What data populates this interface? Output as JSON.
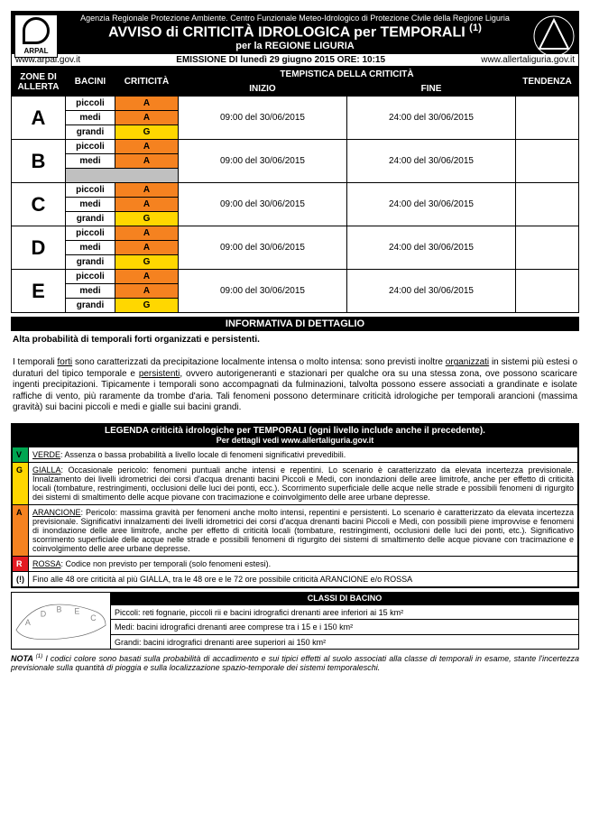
{
  "header": {
    "agency": "Agenzia Regionale Protezione Ambiente. Centro Funzionale Meteo-Idrologico di Protezione Civile della Regione Liguria",
    "title_pre": "AVVISO di CRITICITÀ IDROLOGICA per TEMPORALI",
    "title_sup": "(1)",
    "subtitle": "per la REGIONE LIGURIA",
    "logo_left_label": "ARPAL"
  },
  "urls": {
    "left": "www.arpal.gov.it",
    "center": "EMISSIONE DI lunedì 29 giugno 2015 ORE: 10:15",
    "right": "www.allertaliguria.gov.it"
  },
  "columns": {
    "zone": "ZONE DI ALLERTA",
    "bacini": "BACINI",
    "crit": "CRITICITÀ",
    "temp_group": "TEMPISTICA DELLA CRITICITÀ",
    "inizio": "INIZIO",
    "fine": "FINE",
    "tendenza": "TENDENZA"
  },
  "bacini_labels": {
    "piccoli": "piccoli",
    "medi": "medi",
    "grandi": "grandi"
  },
  "timing": {
    "inizio": "09:00 del 30/06/2015",
    "fine": "24:00 del 30/06/2015"
  },
  "zones": {
    "A": {
      "piccoli": "A",
      "medi": "A",
      "grandi": "G"
    },
    "B": {
      "piccoli": "A",
      "medi": "A"
    },
    "C": {
      "piccoli": "A",
      "medi": "A",
      "grandi": "G"
    },
    "D": {
      "piccoli": "A",
      "medi": "A",
      "grandi": "G"
    },
    "E": {
      "piccoli": "A",
      "medi": "A",
      "grandi": "G"
    }
  },
  "info": {
    "heading": "INFORMATIVA DI DETTAGLIO",
    "lead": "Alta probabilità di temporali forti organizzati e persistenti.",
    "body_pre": "I temporali ",
    "body_u1": "forti",
    "body_mid1": " sono caratterizzati da precipitazione localmente intensa o molto intensa: sono previsti inoltre ",
    "body_u2": "organizzati",
    "body_mid2": " in sistemi più estesi o duraturi del tipico temporale e ",
    "body_u3": "persistenti",
    "body_tail": ", ovvero autorigeneranti e stazionari per qualche ora su una stessa zona, ove possono scaricare ingenti precipitazioni. Tipicamente i temporali sono accompagnati da fulminazioni, talvolta possono essere associati a grandinate e isolate raffiche di vento, più raramente da trombe d'aria. Tali fenomeni possono determinare criticità idrologiche per temporali arancioni (massima gravità) sui bacini piccoli e medi e gialle sui bacini grandi."
  },
  "legend": {
    "heading": "LEGENDA criticità idrologiche per TEMPORALI (ogni livello include anche il precedente).",
    "sub": "Per dettagli vedi www.allertaliguria.gov.it",
    "rows": [
      {
        "code": "V",
        "class": "lv-V",
        "label": "VERDE",
        "text": ": Assenza o bassa probabilità a livello locale di fenomeni significativi prevedibili."
      },
      {
        "code": "G",
        "class": "lv-G",
        "label": "GIALLA",
        "text": ": Occasionale pericolo: fenomeni puntuali anche intensi e repentini. Lo scenario è caratterizzato da elevata incertezza previsionale. Innalzamento dei livelli idrometrici dei corsi d'acqua drenanti bacini Piccoli e Medi, con inondazioni delle aree limitrofe, anche per effetto di criticità locali (tombature, restringimenti, occlusioni delle luci dei ponti, ecc.). Scorrimento superficiale delle acque nelle strade e possibili fenomeni di rigurgito dei sistemi di smaltimento delle acque piovane con tracimazione e coinvolgimento delle aree urbane depresse."
      },
      {
        "code": "A",
        "class": "lv-A",
        "label": "ARANCIONE",
        "text": ": Pericolo: massima gravità per fenomeni anche molto intensi, repentini e persistenti. Lo scenario è caratterizzato da elevata incertezza previsionale. Significativi innalzamenti dei livelli idrometrici dei corsi d'acqua drenanti bacini Piccoli e Medi, con possibili piene improvvise e fenomeni di inondazione delle aree limitrofe, anche per effetto di criticità locali (tombature, restringimenti, occlusioni delle luci dei ponti, etc.). Significativo scorrimento superficiale delle acque nelle strade e possibili fenomeni di rigurgito dei sistemi di smaltimento delle acque piovane con tracimazione e coinvolgimento delle aree urbane depresse."
      },
      {
        "code": "R",
        "class": "lv-R",
        "label": "ROSSA",
        "text": ": Codice non previsto per temporali (solo fenomeni estesi)."
      },
      {
        "code": "(!)",
        "class": "lv-ex",
        "label": "",
        "text": "Fino alle 48 ore criticità al più GIALLA, tra le 48 ore e le 72 ore possibile criticità ARANCIONE e/o ROSSA"
      }
    ]
  },
  "classi": {
    "heading": "CLASSI DI BACINO",
    "rows": [
      "Piccoli: reti fognarie, piccoli rii e bacini idrografici drenanti aree inferiori ai 15 km²",
      "Medi: bacini idrografici drenanti aree comprese tra i 15 e i 150 km²",
      "Grandi: bacini idrografici drenanti aree superiori ai 150 km²"
    ],
    "map_letters": [
      "A",
      "B",
      "C",
      "D",
      "E"
    ]
  },
  "nota": {
    "lead": "NOTA ",
    "sup": "(1)",
    "text": " I codici colore sono basati sulla probabilità di accadimento e sui tipici effetti al suolo associati alla classe di temporali in esame, stante l'incertezza previsionale sulla quantità di pioggia e sulla localizzazione spazio-temporale dei sistemi temporaleschi."
  },
  "colors": {
    "arancione": "#f58220",
    "gialla": "#ffd700",
    "verde": "#00a651",
    "rossa": "#e31b23",
    "grey": "#c0c0c0"
  }
}
